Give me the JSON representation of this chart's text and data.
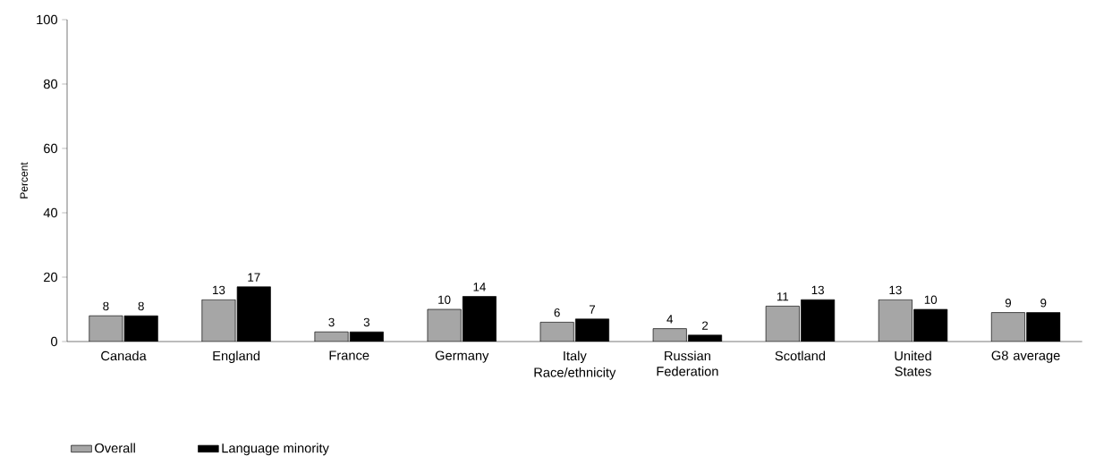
{
  "chart_data": {
    "type": "bar",
    "xlabel": "Race/ethnicity",
    "ylabel": "Percent",
    "categories": [
      "Canada",
      "England",
      "France",
      "Germany",
      "Italy",
      "Russian Federation",
      "Scotland",
      "United States",
      "G8 average"
    ],
    "series": [
      {
        "name": "Overall",
        "color": "#a6a6a6",
        "values": [
          8,
          13,
          3,
          10,
          6,
          4,
          11,
          13,
          9
        ]
      },
      {
        "name": "Language minority",
        "color": "#000000",
        "values": [
          8,
          17,
          3,
          14,
          7,
          2,
          13,
          10,
          9
        ]
      }
    ],
    "ylim": [
      0,
      100
    ],
    "yticks": [
      0,
      20,
      40,
      60,
      80,
      100
    ],
    "data_labels": true,
    "legend": "bottom left"
  }
}
